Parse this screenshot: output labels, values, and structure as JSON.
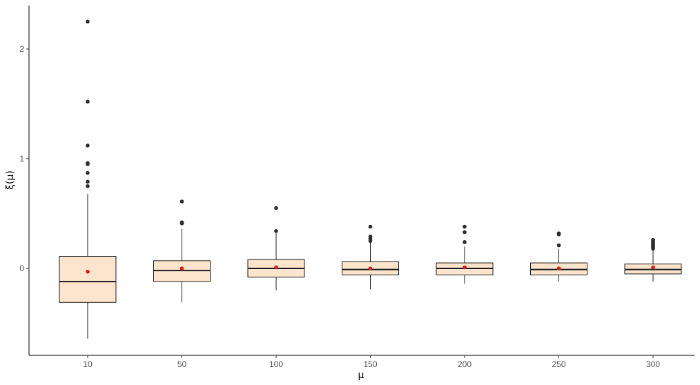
{
  "chart_data": {
    "type": "boxplot",
    "xlabel": "μ",
    "ylabel": "ξ(μ)",
    "ylim": [
      -0.8,
      2.42
    ],
    "y_ticks": [
      0,
      1,
      2
    ],
    "y_tick_labels": [
      "0",
      "1",
      "2"
    ],
    "grid": false,
    "legend": "none",
    "colors": {
      "box_fill": "#fce5cc",
      "box_stroke": "#1a1a1a",
      "median": "#1a1a1a",
      "outlier": "#2b2b2b",
      "mean_point": "#e31a1c",
      "axis": "#000000"
    },
    "categories": [
      "10",
      "50",
      "100",
      "150",
      "200",
      "250",
      "300"
    ],
    "boxes": [
      {
        "category": "10",
        "whisker_low": -0.64,
        "q1": -0.31,
        "median": -0.12,
        "q3": 0.11,
        "whisker_high": 0.68,
        "mean": -0.03,
        "outliers": [
          0.75,
          0.79,
          0.87,
          0.95,
          0.96,
          1.12,
          1.52,
          2.25
        ]
      },
      {
        "category": "50",
        "whisker_low": -0.31,
        "q1": -0.12,
        "median": -0.02,
        "q3": 0.07,
        "whisker_high": 0.36,
        "mean": 0.0,
        "outliers": [
          0.41,
          0.42,
          0.61
        ]
      },
      {
        "category": "100",
        "whisker_low": -0.2,
        "q1": -0.08,
        "median": 0.0,
        "q3": 0.08,
        "whisker_high": 0.32,
        "mean": 0.01,
        "outliers": [
          0.34,
          0.55
        ]
      },
      {
        "category": "150",
        "whisker_low": -0.19,
        "q1": -0.06,
        "median": -0.01,
        "q3": 0.06,
        "whisker_high": 0.24,
        "mean": 0.0,
        "outliers": [
          0.25,
          0.27,
          0.29,
          0.38
        ]
      },
      {
        "category": "200",
        "whisker_low": -0.14,
        "q1": -0.06,
        "median": 0.0,
        "q3": 0.05,
        "whisker_high": 0.2,
        "mean": 0.01,
        "outliers": [
          0.24,
          0.33,
          0.38
        ]
      },
      {
        "category": "250",
        "whisker_low": -0.12,
        "q1": -0.06,
        "median": -0.01,
        "q3": 0.05,
        "whisker_high": 0.18,
        "mean": 0.0,
        "outliers": [
          0.21,
          0.31,
          0.32
        ]
      },
      {
        "category": "300",
        "whisker_low": -0.12,
        "q1": -0.05,
        "median": -0.01,
        "q3": 0.04,
        "whisker_high": 0.17,
        "mean": 0.01,
        "outliers": [
          0.18,
          0.19,
          0.2,
          0.21,
          0.22,
          0.23,
          0.24,
          0.25,
          0.26
        ]
      }
    ]
  }
}
